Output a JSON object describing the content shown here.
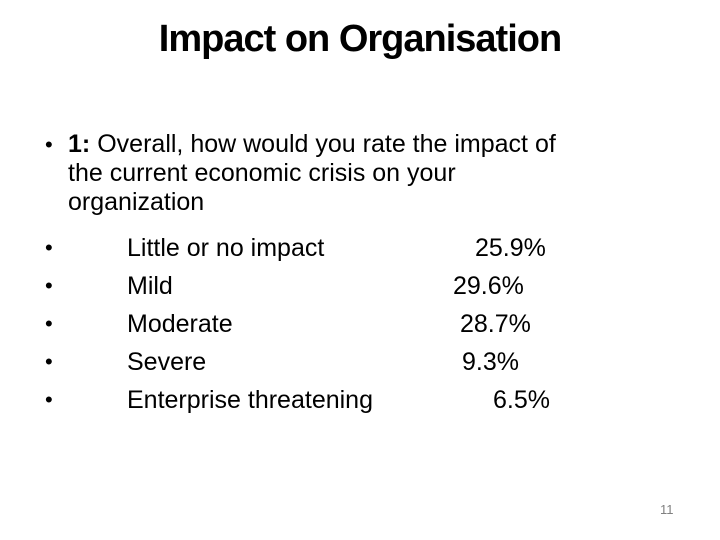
{
  "slide": {
    "title": "Impact on Organisation",
    "bullet_glyph": "•",
    "question": {
      "number_label": "1:",
      "line1": "Overall, how would you rate the impact of",
      "line2": "the current economic crisis on your",
      "line3": "organization"
    },
    "items": [
      {
        "label": "Little or no impact",
        "value": "25.9%"
      },
      {
        "label": "Mild",
        "value": "29.6%"
      },
      {
        "label": "Moderate",
        "value": "28.7%"
      },
      {
        "label": "Severe",
        "value": "9.3%"
      },
      {
        "label": "Enterprise threatening",
        "value": "6.5%"
      }
    ],
    "page_number": "11",
    "colors": {
      "background": "#ffffff",
      "text": "#000000",
      "page_number": "#808080"
    }
  }
}
